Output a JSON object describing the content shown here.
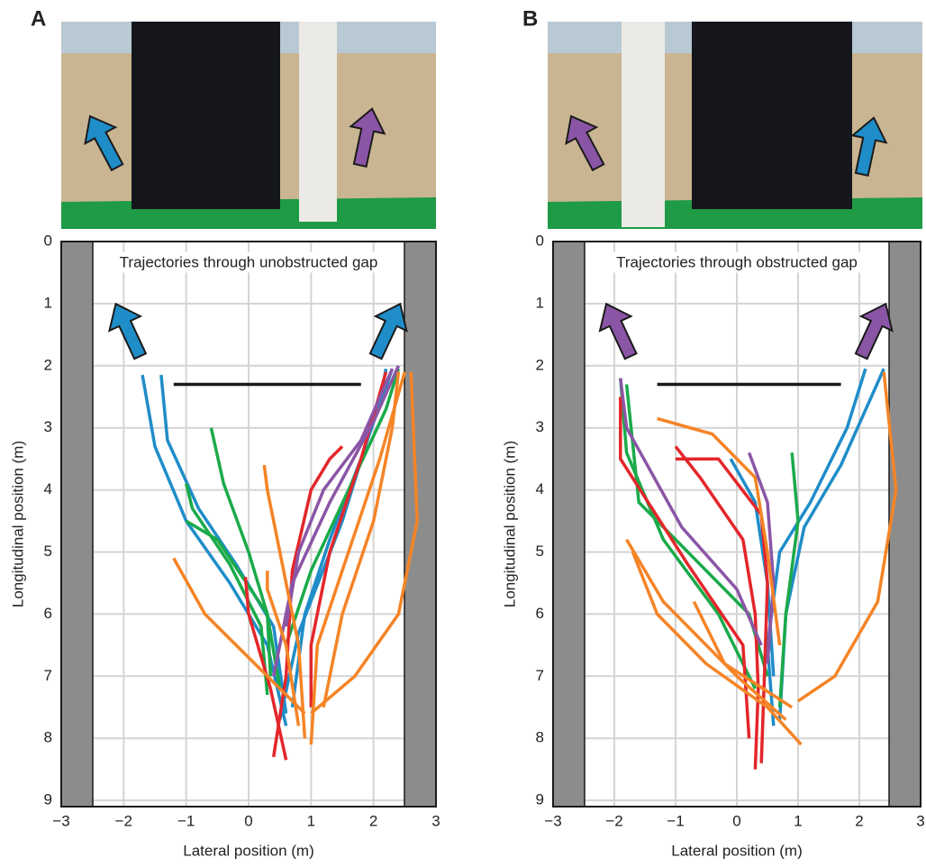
{
  "chart_data": [
    {
      "type": "line",
      "panel_label": "A",
      "title": "Trajectories through unobstructed gap",
      "x_label": "Lateral position (m)",
      "y_label": "Longitudinal position (m)",
      "xlim": [
        -3,
        3
      ],
      "ylim": [
        9.1,
        0
      ],
      "xticks": [
        {
          "value": -3,
          "label": "−3"
        },
        {
          "value": -2,
          "label": "−2"
        },
        {
          "value": -1,
          "label": "−1"
        },
        0,
        1,
        2,
        3
      ],
      "yticks": [
        0,
        1,
        2,
        3,
        4,
        5,
        6,
        7,
        8,
        9
      ],
      "grid": true,
      "series": [
        {
          "color": "#1a1a1a",
          "x": [
            -1.2,
            1.8
          ],
          "values": [
            2.3,
            2.3
          ]
        },
        {
          "color": "#1f8dc8",
          "x": [
            0.6,
            0.3,
            -0.3,
            -1.0,
            -1.5,
            -1.7
          ],
          "values": [
            7.8,
            6.5,
            5.5,
            4.5,
            3.3,
            2.15
          ]
        },
        {
          "color": "#1f8dc8",
          "x": [
            0.6,
            0.4,
            -0.2,
            -0.8,
            -1.3,
            -1.4
          ],
          "values": [
            7.6,
            6.2,
            5.2,
            4.3,
            3.2,
            2.15
          ]
        },
        {
          "color": "#1f8dc8",
          "x": [
            0.7,
            0.9,
            1.3,
            1.8,
            2.1,
            2.2
          ],
          "values": [
            7.5,
            6.0,
            4.8,
            3.5,
            2.6,
            2.05
          ]
        },
        {
          "color": "#1f8dc8",
          "x": [
            0.5,
            0.8,
            1.5,
            1.9,
            2.3
          ],
          "values": [
            7.7,
            6.3,
            4.5,
            3.2,
            2.05
          ]
        },
        {
          "color": "#1aaa4a",
          "x": [
            0.3,
            0.2,
            -0.3,
            -0.9,
            -1.0
          ],
          "values": [
            7.3,
            6.2,
            5.2,
            4.3,
            3.9
          ]
        },
        {
          "color": "#1aaa4a",
          "x": [
            0.35,
            0.3,
            0.0,
            -0.4,
            -0.6
          ],
          "values": [
            7.0,
            6.0,
            5.0,
            3.9,
            3.0
          ]
        },
        {
          "color": "#1aaa4a",
          "x": [
            0.6,
            1.0,
            1.6,
            2.2,
            2.4
          ],
          "values": [
            6.5,
            5.3,
            4.0,
            2.7,
            2.05
          ]
        },
        {
          "color": "#1aaa4a",
          "x": [
            0.5,
            0.3,
            -0.5,
            -1.0
          ],
          "values": [
            7.2,
            6.0,
            4.8,
            4.5
          ]
        },
        {
          "color": "#e3262b",
          "x": [
            0.6,
            0.35,
            0.0,
            -0.05
          ],
          "values": [
            8.35,
            7.2,
            6.0,
            5.4
          ]
        },
        {
          "color": "#e3262b",
          "x": [
            0.4,
            0.6,
            0.7,
            1.0,
            1.3,
            1.5
          ],
          "values": [
            8.3,
            7.0,
            5.3,
            4.0,
            3.5,
            3.3
          ]
        },
        {
          "color": "#e3262b",
          "x": [
            1.0,
            1.0,
            1.3,
            1.8,
            2.2
          ],
          "values": [
            7.5,
            6.5,
            5.0,
            3.5,
            2.1
          ]
        },
        {
          "color": "#8b55a6",
          "x": [
            0.6,
            0.8,
            1.2,
            1.8,
            2.3
          ],
          "values": [
            6.2,
            5.0,
            4.0,
            3.2,
            2.05
          ]
        },
        {
          "color": "#8b55a6",
          "x": [
            0.4,
            0.7,
            1.3,
            2.0,
            2.4
          ],
          "values": [
            7.0,
            5.5,
            4.2,
            2.9,
            2.0
          ]
        },
        {
          "color": "#f58426",
          "x": [
            0.9,
            0.3,
            -0.7,
            -1.2
          ],
          "values": [
            7.6,
            7.0,
            6.0,
            5.1
          ]
        },
        {
          "color": "#f58426",
          "x": [
            1.0,
            1.1,
            1.6,
            2.1,
            2.5
          ],
          "values": [
            8.1,
            6.5,
            5.0,
            3.5,
            2.1
          ]
        },
        {
          "color": "#f58426",
          "x": [
            1.0,
            1.7,
            2.4,
            2.7,
            2.6
          ],
          "values": [
            7.6,
            7.0,
            6.0,
            4.5,
            2.1
          ]
        },
        {
          "color": "#f58426",
          "x": [
            0.9,
            0.8,
            0.5,
            0.3,
            0.25
          ],
          "values": [
            8.0,
            6.5,
            5.0,
            4.0,
            3.6
          ]
        },
        {
          "color": "#f58426",
          "x": [
            1.2,
            1.5,
            2.0,
            2.3,
            2.4
          ],
          "values": [
            7.5,
            6.0,
            4.5,
            3.0,
            2.1
          ]
        },
        {
          "color": "#f58426",
          "x": [
            0.8,
            0.6,
            0.3,
            0.3
          ],
          "values": [
            7.8,
            6.5,
            5.6,
            5.3
          ]
        }
      ]
    },
    {
      "type": "line",
      "panel_label": "B",
      "title": "Trajectories through obstructed gap",
      "x_label": "Lateral position (m)",
      "y_label": "Longitudinal position (m)",
      "xlim": [
        -3,
        3
      ],
      "ylim": [
        9.1,
        0
      ],
      "xticks": [
        {
          "value": -3,
          "label": "−3"
        },
        {
          "value": -2,
          "label": "−2"
        },
        {
          "value": -1,
          "label": "−1"
        },
        0,
        1,
        2,
        3
      ],
      "yticks": [
        0,
        1,
        2,
        3,
        4,
        5,
        6,
        7,
        8,
        9
      ],
      "grid": true,
      "series": [
        {
          "color": "#1a1a1a",
          "x": [
            -1.3,
            1.7
          ],
          "values": [
            2.3,
            2.3
          ]
        },
        {
          "color": "#1f8dc8",
          "x": [
            0.6,
            0.5,
            0.7,
            1.2,
            1.8,
            2.1
          ],
          "values": [
            7.8,
            6.5,
            5.0,
            4.2,
            3.0,
            2.05
          ]
        },
        {
          "color": "#1f8dc8",
          "x": [
            0.7,
            0.8,
            1.1,
            1.7,
            2.4
          ],
          "values": [
            7.7,
            6.0,
            4.6,
            3.6,
            2.05
          ]
        },
        {
          "color": "#1f8dc8",
          "x": [
            0.6,
            0.5,
            0.3,
            -0.1
          ],
          "values": [
            7.0,
            5.5,
            4.2,
            3.5
          ]
        },
        {
          "color": "#1aaa4a",
          "x": [
            0.3,
            -0.3,
            -1.2,
            -1.8,
            -1.9
          ],
          "values": [
            7.2,
            6.0,
            4.8,
            3.4,
            2.2
          ]
        },
        {
          "color": "#1aaa4a",
          "x": [
            0.7,
            0.8,
            1.0,
            0.9
          ],
          "values": [
            7.5,
            6.0,
            4.5,
            3.4
          ]
        },
        {
          "color": "#1aaa4a",
          "x": [
            0.5,
            0.2,
            -0.6,
            -1.6,
            -1.8
          ],
          "values": [
            7.0,
            6.0,
            5.2,
            4.2,
            2.3
          ]
        },
        {
          "color": "#e3262b",
          "x": [
            0.3,
            0.35,
            0.3,
            0.1,
            -0.6,
            -1.0
          ],
          "values": [
            8.5,
            7.2,
            6.0,
            4.8,
            3.8,
            3.3
          ]
        },
        {
          "color": "#e3262b",
          "x": [
            0.4,
            0.45,
            0.5,
            0.4,
            -0.3,
            -1.0
          ],
          "values": [
            8.4,
            7.0,
            5.5,
            4.4,
            3.5,
            3.5
          ]
        },
        {
          "color": "#e3262b",
          "x": [
            0.2,
            0.1,
            -0.8,
            -1.9,
            -1.9
          ],
          "values": [
            8.0,
            6.5,
            5.2,
            3.5,
            2.5
          ]
        },
        {
          "color": "#8b55a6",
          "x": [
            0.5,
            0.6,
            0.5,
            0.2
          ],
          "values": [
            6.8,
            5.5,
            4.2,
            3.4
          ]
        },
        {
          "color": "#8b55a6",
          "x": [
            0.4,
            0.0,
            -0.9,
            -1.8,
            -1.9
          ],
          "values": [
            6.5,
            5.6,
            4.6,
            3.0,
            2.2
          ]
        },
        {
          "color": "#f58426",
          "x": [
            1.0,
            1.6,
            2.3,
            2.6,
            2.4
          ],
          "values": [
            7.4,
            7.0,
            5.8,
            4.0,
            2.1
          ]
        },
        {
          "color": "#f58426",
          "x": [
            1.05,
            0.5,
            -0.5,
            -1.3,
            -1.7
          ],
          "values": [
            8.1,
            7.5,
            6.8,
            6.0,
            5.0
          ]
        },
        {
          "color": "#f58426",
          "x": [
            0.8,
            0.0,
            -1.2,
            -1.8
          ],
          "values": [
            7.7,
            7.0,
            5.8,
            4.8
          ]
        },
        {
          "color": "#f58426",
          "x": [
            0.7,
            0.5,
            0.3,
            -0.4,
            -1.3
          ],
          "values": [
            6.5,
            5.0,
            3.8,
            3.1,
            2.85
          ]
        },
        {
          "color": "#f58426",
          "x": [
            0.9,
            -0.2,
            -0.7
          ],
          "values": [
            7.5,
            6.8,
            5.8
          ]
        }
      ]
    }
  ]
}
